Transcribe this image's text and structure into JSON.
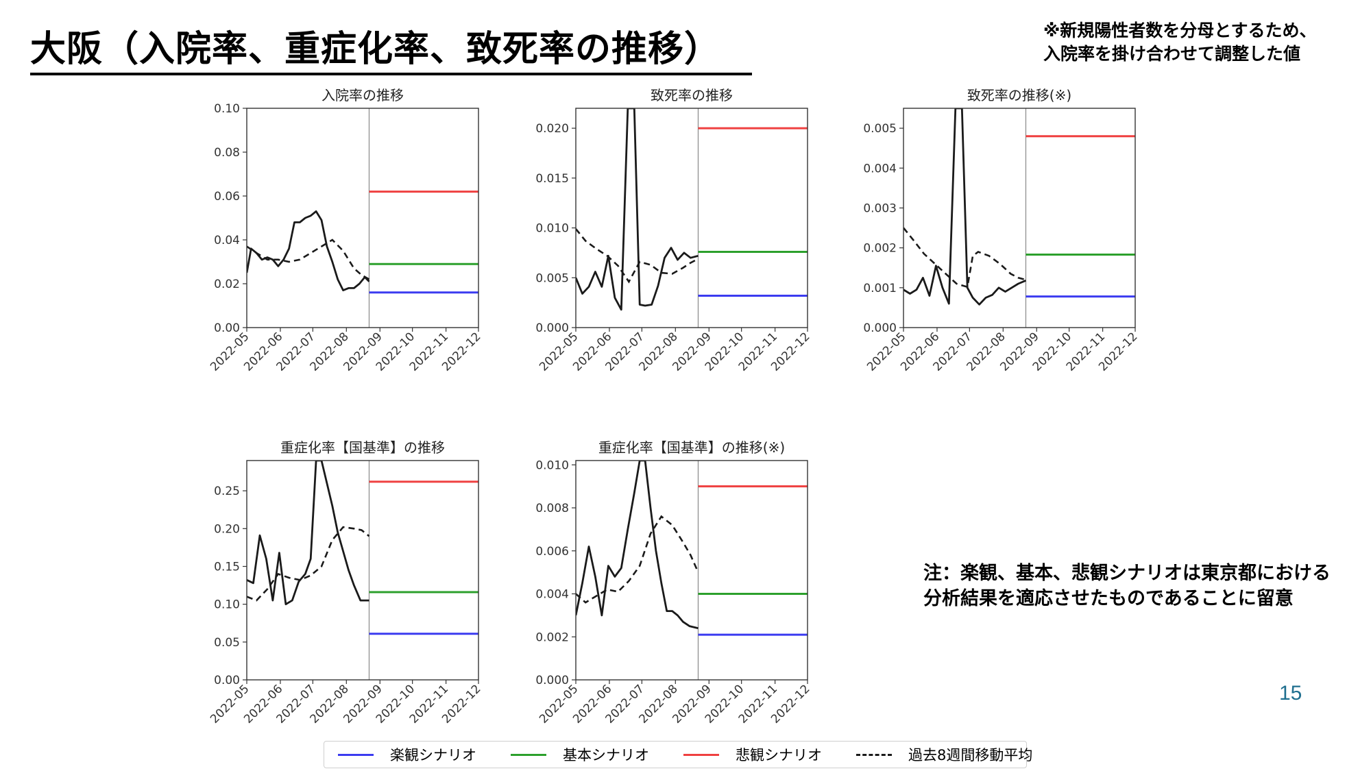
{
  "slide": {
    "title": "大阪（入院率、重症化率、致死率の推移）",
    "note_top": [
      "※新規陽性者数を分母とするため、",
      "入院率を掛け合わせて調整した値"
    ],
    "note_bottom": [
      "注：楽観、基本、悲観シナリオは東京都における",
      "分析結果を適応させたものであることに留意"
    ],
    "page_number": "15"
  },
  "colors": {
    "optimistic": "#3b3bf0",
    "base": "#2ca02c",
    "pessimistic": "#ef4040",
    "history": "#1a1a1a"
  },
  "legend": {
    "items": [
      {
        "key": "optimistic",
        "label": "楽観シナリオ",
        "style": "solid"
      },
      {
        "key": "base",
        "label": "基本シナリオ",
        "style": "solid"
      },
      {
        "key": "pessimistic",
        "label": "悲観シナリオ",
        "style": "solid"
      },
      {
        "key": "history",
        "label": "過去8週間移動平均",
        "style": "dashed"
      }
    ]
  },
  "chart_data": [
    {
      "id": "hospitalization",
      "type": "line",
      "title": "入院率の推移",
      "xlabel": "",
      "ylabel": "",
      "xlim": [
        "2022-05-01",
        "2022-12-01"
      ],
      "ylim": [
        0,
        0.1
      ],
      "yticks": [
        "0.00",
        "0.02",
        "0.04",
        "0.06",
        "0.08",
        "0.10"
      ],
      "xticks": [
        "2022-05",
        "2022-06",
        "2022-07",
        "2022-08",
        "2022-09",
        "2022-10",
        "2022-11",
        "2022-12"
      ],
      "divider_date": "2022-08-22",
      "grid": false,
      "actual": {
        "x": [
          "2022-05-01",
          "2022-05-05",
          "2022-05-10",
          "2022-05-15",
          "2022-05-20",
          "2022-05-25",
          "2022-05-30",
          "2022-06-04",
          "2022-06-09",
          "2022-06-14",
          "2022-06-19",
          "2022-06-24",
          "2022-06-29",
          "2022-07-04",
          "2022-07-09",
          "2022-07-14",
          "2022-07-19",
          "2022-07-24",
          "2022-07-29",
          "2022-08-03",
          "2022-08-08",
          "2022-08-13",
          "2022-08-18",
          "2022-08-22"
        ],
        "y": [
          0.025,
          0.036,
          0.034,
          0.031,
          0.032,
          0.031,
          0.028,
          0.031,
          0.036,
          0.048,
          0.048,
          0.05,
          0.051,
          0.053,
          0.049,
          0.037,
          0.03,
          0.022,
          0.017,
          0.018,
          0.018,
          0.02,
          0.023,
          0.021
        ]
      },
      "moving_average": {
        "x": [
          "2022-05-01",
          "2022-05-10",
          "2022-05-20",
          "2022-05-30",
          "2022-06-09",
          "2022-06-19",
          "2022-06-29",
          "2022-07-09",
          "2022-07-19",
          "2022-07-29",
          "2022-08-08",
          "2022-08-15",
          "2022-08-22"
        ],
        "y": [
          0.037,
          0.034,
          0.031,
          0.031,
          0.03,
          0.031,
          0.034,
          0.037,
          0.04,
          0.035,
          0.027,
          0.024,
          0.022
        ]
      },
      "scenarios": {
        "optimistic": 0.016,
        "base": 0.029,
        "pessimistic": 0.062
      }
    },
    {
      "id": "fatality",
      "type": "line",
      "title": "致死率の推移",
      "xlabel": "",
      "ylabel": "",
      "xlim": [
        "2022-05-01",
        "2022-12-01"
      ],
      "ylim": [
        0,
        0.022
      ],
      "yticks": [
        "0.000",
        "0.005",
        "0.010",
        "0.015",
        "0.020"
      ],
      "xticks": [
        "2022-05",
        "2022-06",
        "2022-07",
        "2022-08",
        "2022-09",
        "2022-10",
        "2022-11",
        "2022-12"
      ],
      "divider_date": "2022-08-22",
      "grid": false,
      "actual": {
        "x": [
          "2022-05-01",
          "2022-05-07",
          "2022-05-13",
          "2022-05-19",
          "2022-05-25",
          "2022-05-31",
          "2022-06-06",
          "2022-06-12",
          "2022-06-18",
          "2022-06-24",
          "2022-06-29",
          "2022-07-04",
          "2022-07-10",
          "2022-07-16",
          "2022-07-22",
          "2022-07-28",
          "2022-08-03",
          "2022-08-09",
          "2022-08-15",
          "2022-08-22"
        ],
        "y": [
          0.005,
          0.0034,
          0.0041,
          0.0056,
          0.0041,
          0.0072,
          0.003,
          0.0018,
          0.022,
          0.022,
          0.0023,
          0.0022,
          0.0023,
          0.0042,
          0.007,
          0.008,
          0.0068,
          0.0075,
          0.007,
          0.0072
        ]
      },
      "moving_average": {
        "x": [
          "2022-05-01",
          "2022-05-10",
          "2022-05-20",
          "2022-05-30",
          "2022-06-09",
          "2022-06-19",
          "2022-06-29",
          "2022-07-09",
          "2022-07-19",
          "2022-07-29",
          "2022-08-08",
          "2022-08-15",
          "2022-08-22"
        ],
        "y": [
          0.0099,
          0.0087,
          0.0079,
          0.0072,
          0.0062,
          0.0046,
          0.0066,
          0.0063,
          0.0055,
          0.0054,
          0.006,
          0.0065,
          0.0069
        ]
      },
      "scenarios": {
        "optimistic": 0.0032,
        "base": 0.0076,
        "pessimistic": 0.02
      }
    },
    {
      "id": "fatality_adjusted",
      "type": "line",
      "title": "致死率の推移(※)",
      "xlabel": "",
      "ylabel": "",
      "xlim": [
        "2022-05-01",
        "2022-12-01"
      ],
      "ylim": [
        0,
        0.0055
      ],
      "yticks": [
        "0.000",
        "0.001",
        "0.002",
        "0.003",
        "0.004",
        "0.005"
      ],
      "xticks": [
        "2022-05",
        "2022-06",
        "2022-07",
        "2022-08",
        "2022-09",
        "2022-10",
        "2022-11",
        "2022-12"
      ],
      "divider_date": "2022-08-22",
      "grid": false,
      "actual": {
        "x": [
          "2022-05-01",
          "2022-05-07",
          "2022-05-13",
          "2022-05-19",
          "2022-05-25",
          "2022-05-31",
          "2022-06-06",
          "2022-06-12",
          "2022-06-18",
          "2022-06-24",
          "2022-06-29",
          "2022-07-04",
          "2022-07-10",
          "2022-07-16",
          "2022-07-22",
          "2022-07-28",
          "2022-08-03",
          "2022-08-09",
          "2022-08-15",
          "2022-08-22"
        ],
        "y": [
          0.00095,
          0.00085,
          0.00095,
          0.00125,
          0.0008,
          0.00155,
          0.001,
          0.0006,
          0.0055,
          0.0055,
          0.001,
          0.00075,
          0.00058,
          0.00075,
          0.00082,
          0.001,
          0.0009,
          0.001,
          0.0011,
          0.00118
        ]
      },
      "moving_average": {
        "x": [
          "2022-05-01",
          "2022-05-10",
          "2022-05-20",
          "2022-05-30",
          "2022-06-09",
          "2022-06-19",
          "2022-06-29",
          "2022-07-04",
          "2022-07-09",
          "2022-07-19",
          "2022-07-29",
          "2022-08-08",
          "2022-08-15",
          "2022-08-22"
        ],
        "y": [
          0.0025,
          0.0022,
          0.00185,
          0.0016,
          0.00135,
          0.0011,
          0.00102,
          0.0018,
          0.0019,
          0.0018,
          0.0016,
          0.00135,
          0.00125,
          0.0012
        ]
      },
      "scenarios": {
        "optimistic": 0.00078,
        "base": 0.00183,
        "pessimistic": 0.0048
      }
    },
    {
      "id": "severity",
      "type": "line",
      "title": "重症化率【国基準】の推移",
      "xlabel": "",
      "ylabel": "",
      "xlim": [
        "2022-05-01",
        "2022-12-01"
      ],
      "ylim": [
        0,
        0.29
      ],
      "yticks": [
        "0.00",
        "0.05",
        "0.10",
        "0.15",
        "0.20",
        "0.25"
      ],
      "xticks": [
        "2022-05",
        "2022-06",
        "2022-07",
        "2022-08",
        "2022-09",
        "2022-10",
        "2022-11",
        "2022-12"
      ],
      "divider_date": "2022-08-22",
      "grid": false,
      "actual": {
        "x": [
          "2022-05-01",
          "2022-05-07",
          "2022-05-13",
          "2022-05-19",
          "2022-05-25",
          "2022-05-31",
          "2022-06-06",
          "2022-06-12",
          "2022-06-18",
          "2022-06-24",
          "2022-06-29",
          "2022-07-04",
          "2022-07-09",
          "2022-07-14",
          "2022-07-19",
          "2022-07-24",
          "2022-07-29",
          "2022-08-03",
          "2022-08-08",
          "2022-08-14",
          "2022-08-22"
        ],
        "y": [
          0.132,
          0.128,
          0.191,
          0.16,
          0.105,
          0.168,
          0.1,
          0.105,
          0.13,
          0.14,
          0.16,
          0.29,
          0.29,
          0.26,
          0.23,
          0.195,
          0.17,
          0.145,
          0.125,
          0.105,
          0.105
        ]
      },
      "moving_average": {
        "x": [
          "2022-05-01",
          "2022-05-10",
          "2022-05-20",
          "2022-05-30",
          "2022-06-09",
          "2022-06-19",
          "2022-06-29",
          "2022-07-09",
          "2022-07-19",
          "2022-07-29",
          "2022-08-08",
          "2022-08-15",
          "2022-08-22"
        ],
        "y": [
          0.11,
          0.105,
          0.12,
          0.14,
          0.135,
          0.132,
          0.138,
          0.15,
          0.185,
          0.202,
          0.2,
          0.198,
          0.19
        ]
      },
      "scenarios": {
        "optimistic": 0.061,
        "base": 0.116,
        "pessimistic": 0.262
      }
    },
    {
      "id": "severity_adjusted",
      "type": "line",
      "title": "重症化率【国基準】の推移(※)",
      "xlabel": "",
      "ylabel": "",
      "xlim": [
        "2022-05-01",
        "2022-12-01"
      ],
      "ylim": [
        0,
        0.0102
      ],
      "yticks": [
        "0.000",
        "0.002",
        "0.004",
        "0.006",
        "0.008",
        "0.010"
      ],
      "xticks": [
        "2022-05",
        "2022-06",
        "2022-07",
        "2022-08",
        "2022-09",
        "2022-10",
        "2022-11",
        "2022-12"
      ],
      "divider_date": "2022-08-22",
      "grid": false,
      "actual": {
        "x": [
          "2022-05-01",
          "2022-05-07",
          "2022-05-13",
          "2022-05-19",
          "2022-05-25",
          "2022-05-31",
          "2022-06-06",
          "2022-06-12",
          "2022-06-18",
          "2022-06-24",
          "2022-06-29",
          "2022-07-04",
          "2022-07-09",
          "2022-07-14",
          "2022-07-19",
          "2022-07-24",
          "2022-07-29",
          "2022-08-03",
          "2022-08-08",
          "2022-08-14",
          "2022-08-22"
        ],
        "y": [
          0.003,
          0.0045,
          0.0062,
          0.0048,
          0.003,
          0.0053,
          0.0048,
          0.0052,
          0.007,
          0.0087,
          0.0102,
          0.0102,
          0.008,
          0.006,
          0.0045,
          0.0032,
          0.0032,
          0.003,
          0.0027,
          0.0025,
          0.0024
        ]
      },
      "moving_average": {
        "x": [
          "2022-05-01",
          "2022-05-10",
          "2022-05-20",
          "2022-05-30",
          "2022-06-09",
          "2022-06-19",
          "2022-06-29",
          "2022-07-09",
          "2022-07-19",
          "2022-07-29",
          "2022-08-08",
          "2022-08-15",
          "2022-08-22"
        ],
        "y": [
          0.004,
          0.0036,
          0.0039,
          0.0042,
          0.0041,
          0.0046,
          0.0053,
          0.0068,
          0.0076,
          0.0072,
          0.0064,
          0.0058,
          0.005
        ]
      },
      "scenarios": {
        "optimistic": 0.0021,
        "base": 0.004,
        "pessimistic": 0.009
      }
    }
  ]
}
